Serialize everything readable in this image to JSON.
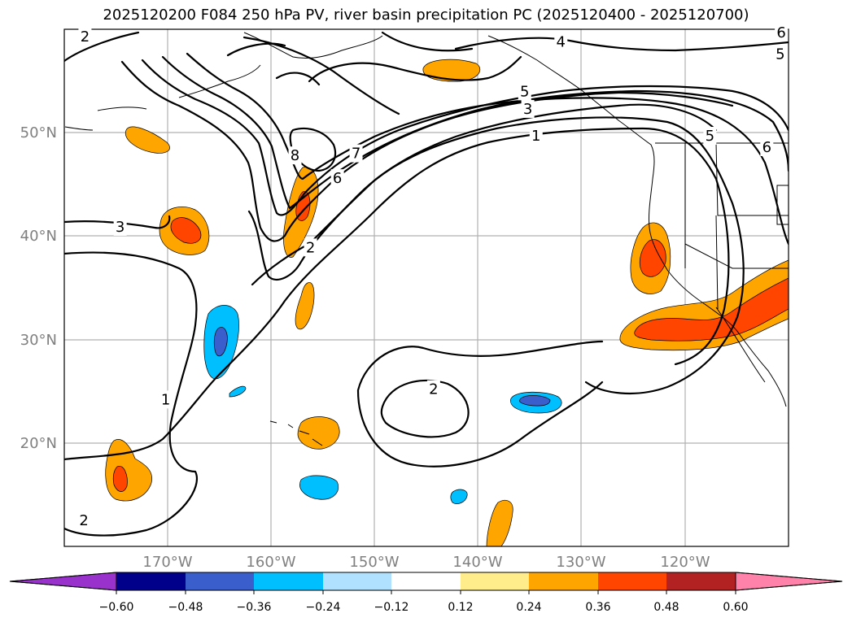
{
  "title": "2025120200 F084 250 hPa PV, river basin precipitation PC (2025120400 - 2025120700)",
  "map": {
    "lon_range": [
      -180,
      -110
    ],
    "lat_range": [
      10,
      60
    ],
    "lat_ticks": [
      {
        "value": 50,
        "label": "50°N"
      },
      {
        "value": 40,
        "label": "40°N"
      },
      {
        "value": 30,
        "label": "30°N"
      },
      {
        "value": 20,
        "label": "20°N"
      }
    ],
    "lon_ticks": [
      {
        "value": -170,
        "label": "170°W"
      },
      {
        "value": -160,
        "label": "160°W"
      },
      {
        "value": -150,
        "label": "150°W"
      },
      {
        "value": -140,
        "label": "140°W"
      },
      {
        "value": -130,
        "label": "130°W"
      },
      {
        "value": -120,
        "label": "120°W"
      }
    ],
    "contour_labels": [
      "1",
      "2",
      "3",
      "4",
      "5",
      "6",
      "7",
      "8"
    ],
    "pv_contour_label_text": [
      {
        "text": "2",
        "lon": -178,
        "lat": 59.3
      },
      {
        "text": "4",
        "lon": -132,
        "lat": 58.8
      },
      {
        "text": "5",
        "lon": -110.8,
        "lat": 57.6
      },
      {
        "text": "6",
        "lon": -110.7,
        "lat": 59.7
      },
      {
        "text": "5",
        "lon": -135.5,
        "lat": 54
      },
      {
        "text": "3",
        "lon": -135.2,
        "lat": 52.3
      },
      {
        "text": "1",
        "lon": -134.4,
        "lat": 49.7
      },
      {
        "text": "5",
        "lon": -117.6,
        "lat": 49.7
      },
      {
        "text": "6",
        "lon": -112.1,
        "lat": 48.6
      },
      {
        "text": "8",
        "lon": -157.7,
        "lat": 47.8
      },
      {
        "text": "7",
        "lon": -151.8,
        "lat": 48.0
      },
      {
        "text": "6",
        "lon": -153.6,
        "lat": 45.6
      },
      {
        "text": "3",
        "lon": -174.6,
        "lat": 40.9
      },
      {
        "text": "2",
        "lon": -156.2,
        "lat": 38.9
      },
      {
        "text": "2",
        "lon": -144.3,
        "lat": 25.2
      },
      {
        "text": "1",
        "lon": -170.2,
        "lat": 24.2
      },
      {
        "text": "2",
        "lon": -178.1,
        "lat": 12.5
      }
    ]
  },
  "colorbar": {
    "ticks": [
      "−0.60",
      "−0.48",
      "−0.36",
      "−0.24",
      "−0.12",
      "0.12",
      "0.24",
      "0.36",
      "0.48",
      "0.60"
    ],
    "colors": [
      "#9932cc",
      "#00008b",
      "#3a5fcd",
      "#00bfff",
      "#b0e2ff",
      "#ffffff",
      "#ffec8b",
      "#ffa500",
      "#ff4500",
      "#b22222",
      "#ff82ab"
    ]
  },
  "legend_colors": {
    "orange": "#ffa500",
    "red_orange": "#ff4500",
    "deep_sky_blue": "#00bfff",
    "royal_blue": "#3a5fcd"
  }
}
